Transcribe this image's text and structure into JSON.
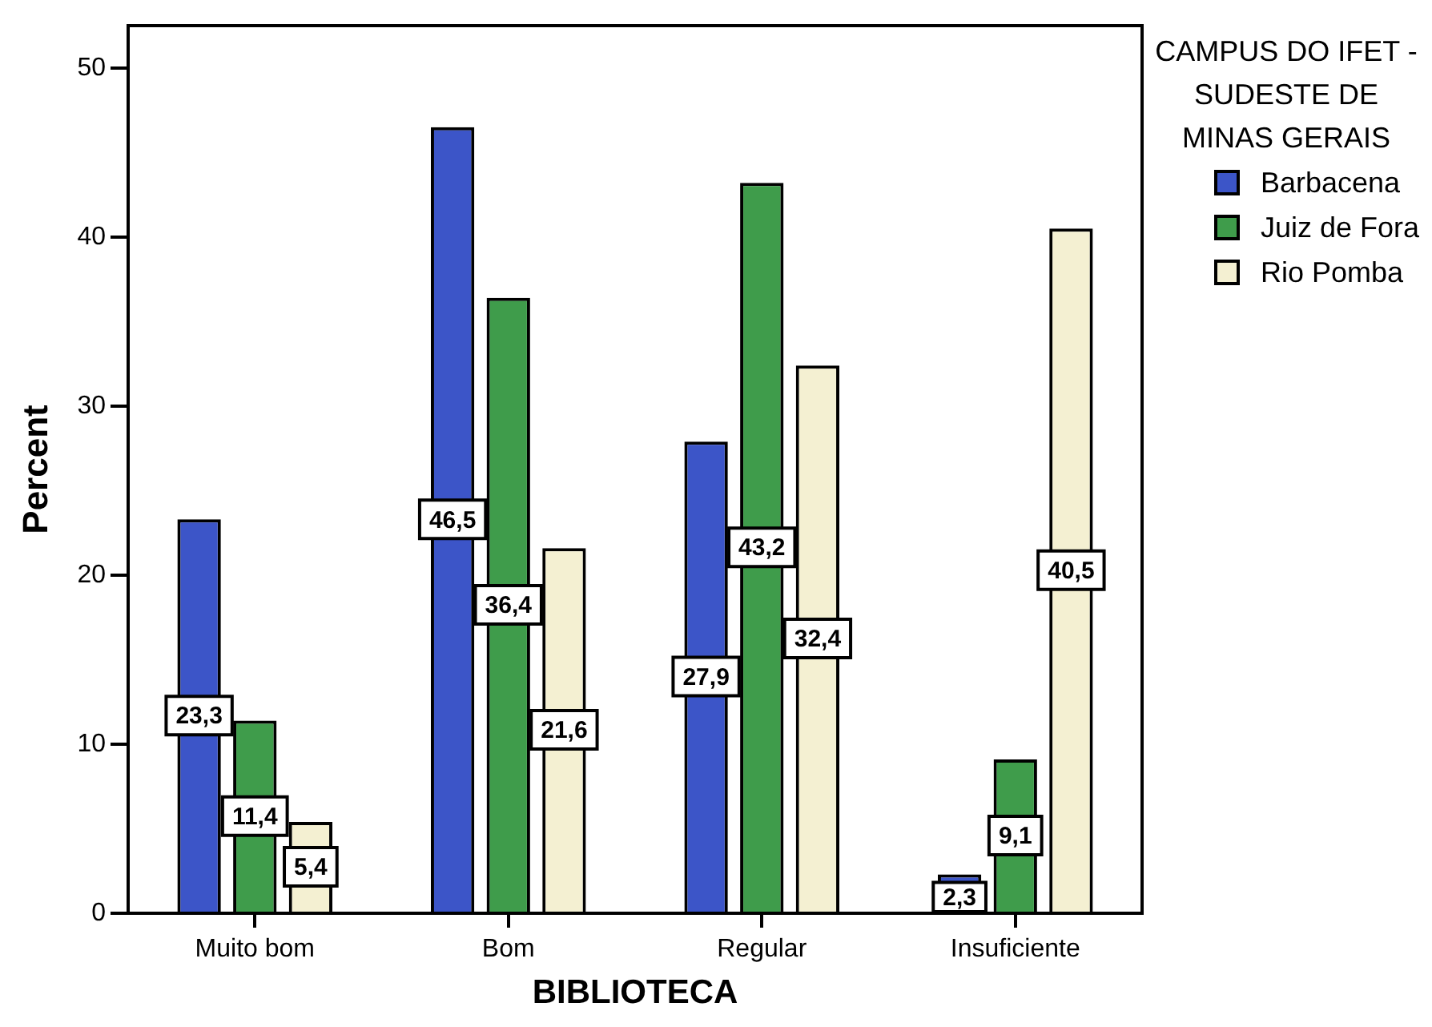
{
  "chart_data": {
    "type": "bar",
    "xlabel": "BIBLIOTECA",
    "ylabel": "Percent",
    "legend_title": "CAMPUS DO IFET - SUDESTE DE MINAS GERAIS",
    "legend": "top right",
    "categories": [
      "Muito bom",
      "Bom",
      "Regular",
      "Insuficiente"
    ],
    "series": [
      {
        "name": "Barbacena",
        "color": "#3c55c8",
        "values": [
          23.3,
          46.5,
          27.9,
          2.3
        ],
        "value_labels": [
          "23,3",
          "46,5",
          "27,9",
          "2,3"
        ]
      },
      {
        "name": "Juiz de Fora",
        "color": "#3f9c4b",
        "values": [
          11.4,
          36.4,
          43.2,
          9.1
        ],
        "value_labels": [
          "11,4",
          "36,4",
          "43,2",
          "9,1"
        ]
      },
      {
        "name": "Rio Pomba",
        "color": "#f4f0d2",
        "values": [
          5.4,
          21.6,
          32.4,
          40.5
        ],
        "value_labels": [
          "5,4",
          "21,6",
          "32,4",
          "40,5"
        ]
      }
    ],
    "ylim": [
      0,
      52.5
    ],
    "yticks": [
      0,
      10,
      20,
      30,
      40,
      50
    ]
  }
}
